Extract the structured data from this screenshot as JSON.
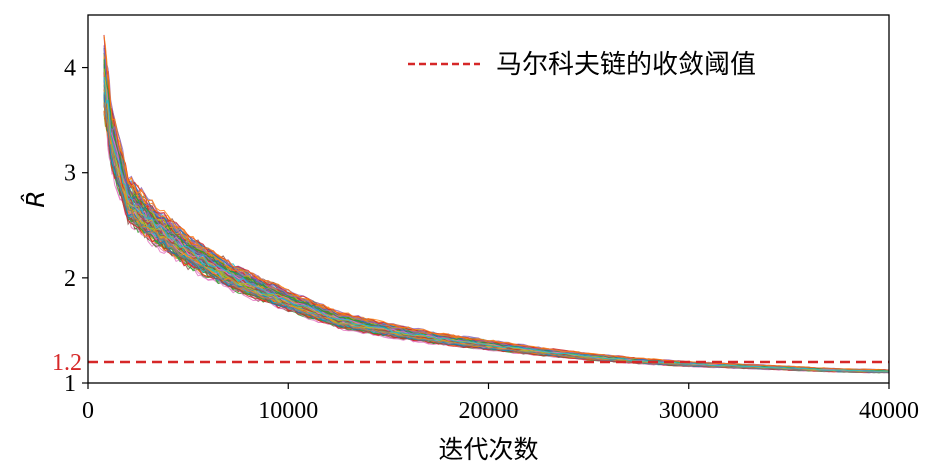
{
  "chart_data": {
    "type": "line",
    "title": "",
    "xlabel": "迭代次数",
    "ylabel": "R̂",
    "xlim": [
      0,
      40000
    ],
    "ylim": [
      1,
      4.5
    ],
    "xticks": [
      0,
      10000,
      20000,
      30000,
      40000
    ],
    "xtick_labels": [
      "0",
      "10000",
      "20000",
      "30000",
      "40000"
    ],
    "yticks": [
      1,
      2,
      3,
      4
    ],
    "ytick_labels": [
      "1",
      "2",
      "3",
      "4"
    ],
    "grid": false,
    "legend": {
      "position": "top-right",
      "entries": [
        {
          "label": "马尔科夫链的收敛阈值",
          "style": "dashed",
          "color": "#d62728"
        }
      ]
    },
    "reference_line": {
      "y": 1.2,
      "label": "1.2",
      "color": "#d62728",
      "style": "dashed"
    },
    "series_count": 120,
    "series_colors": [
      "#1f77b4",
      "#ff7f0e",
      "#2ca02c",
      "#d62728",
      "#9467bd",
      "#8c564b",
      "#e377c2",
      "#7f7f7f",
      "#bcbd22",
      "#17becf"
    ],
    "representative_curve": {
      "x": [
        800,
        1200,
        2000,
        3000,
        5000,
        7500,
        10000,
        12500,
        15000,
        17500,
        20000,
        22500,
        25000,
        27500,
        30000,
        32500,
        35000,
        37500,
        40000
      ],
      "y": [
        3.9,
        3.3,
        2.75,
        2.55,
        2.25,
        1.98,
        1.78,
        1.6,
        1.5,
        1.42,
        1.36,
        1.3,
        1.25,
        1.21,
        1.18,
        1.16,
        1.14,
        1.12,
        1.11
      ]
    }
  }
}
